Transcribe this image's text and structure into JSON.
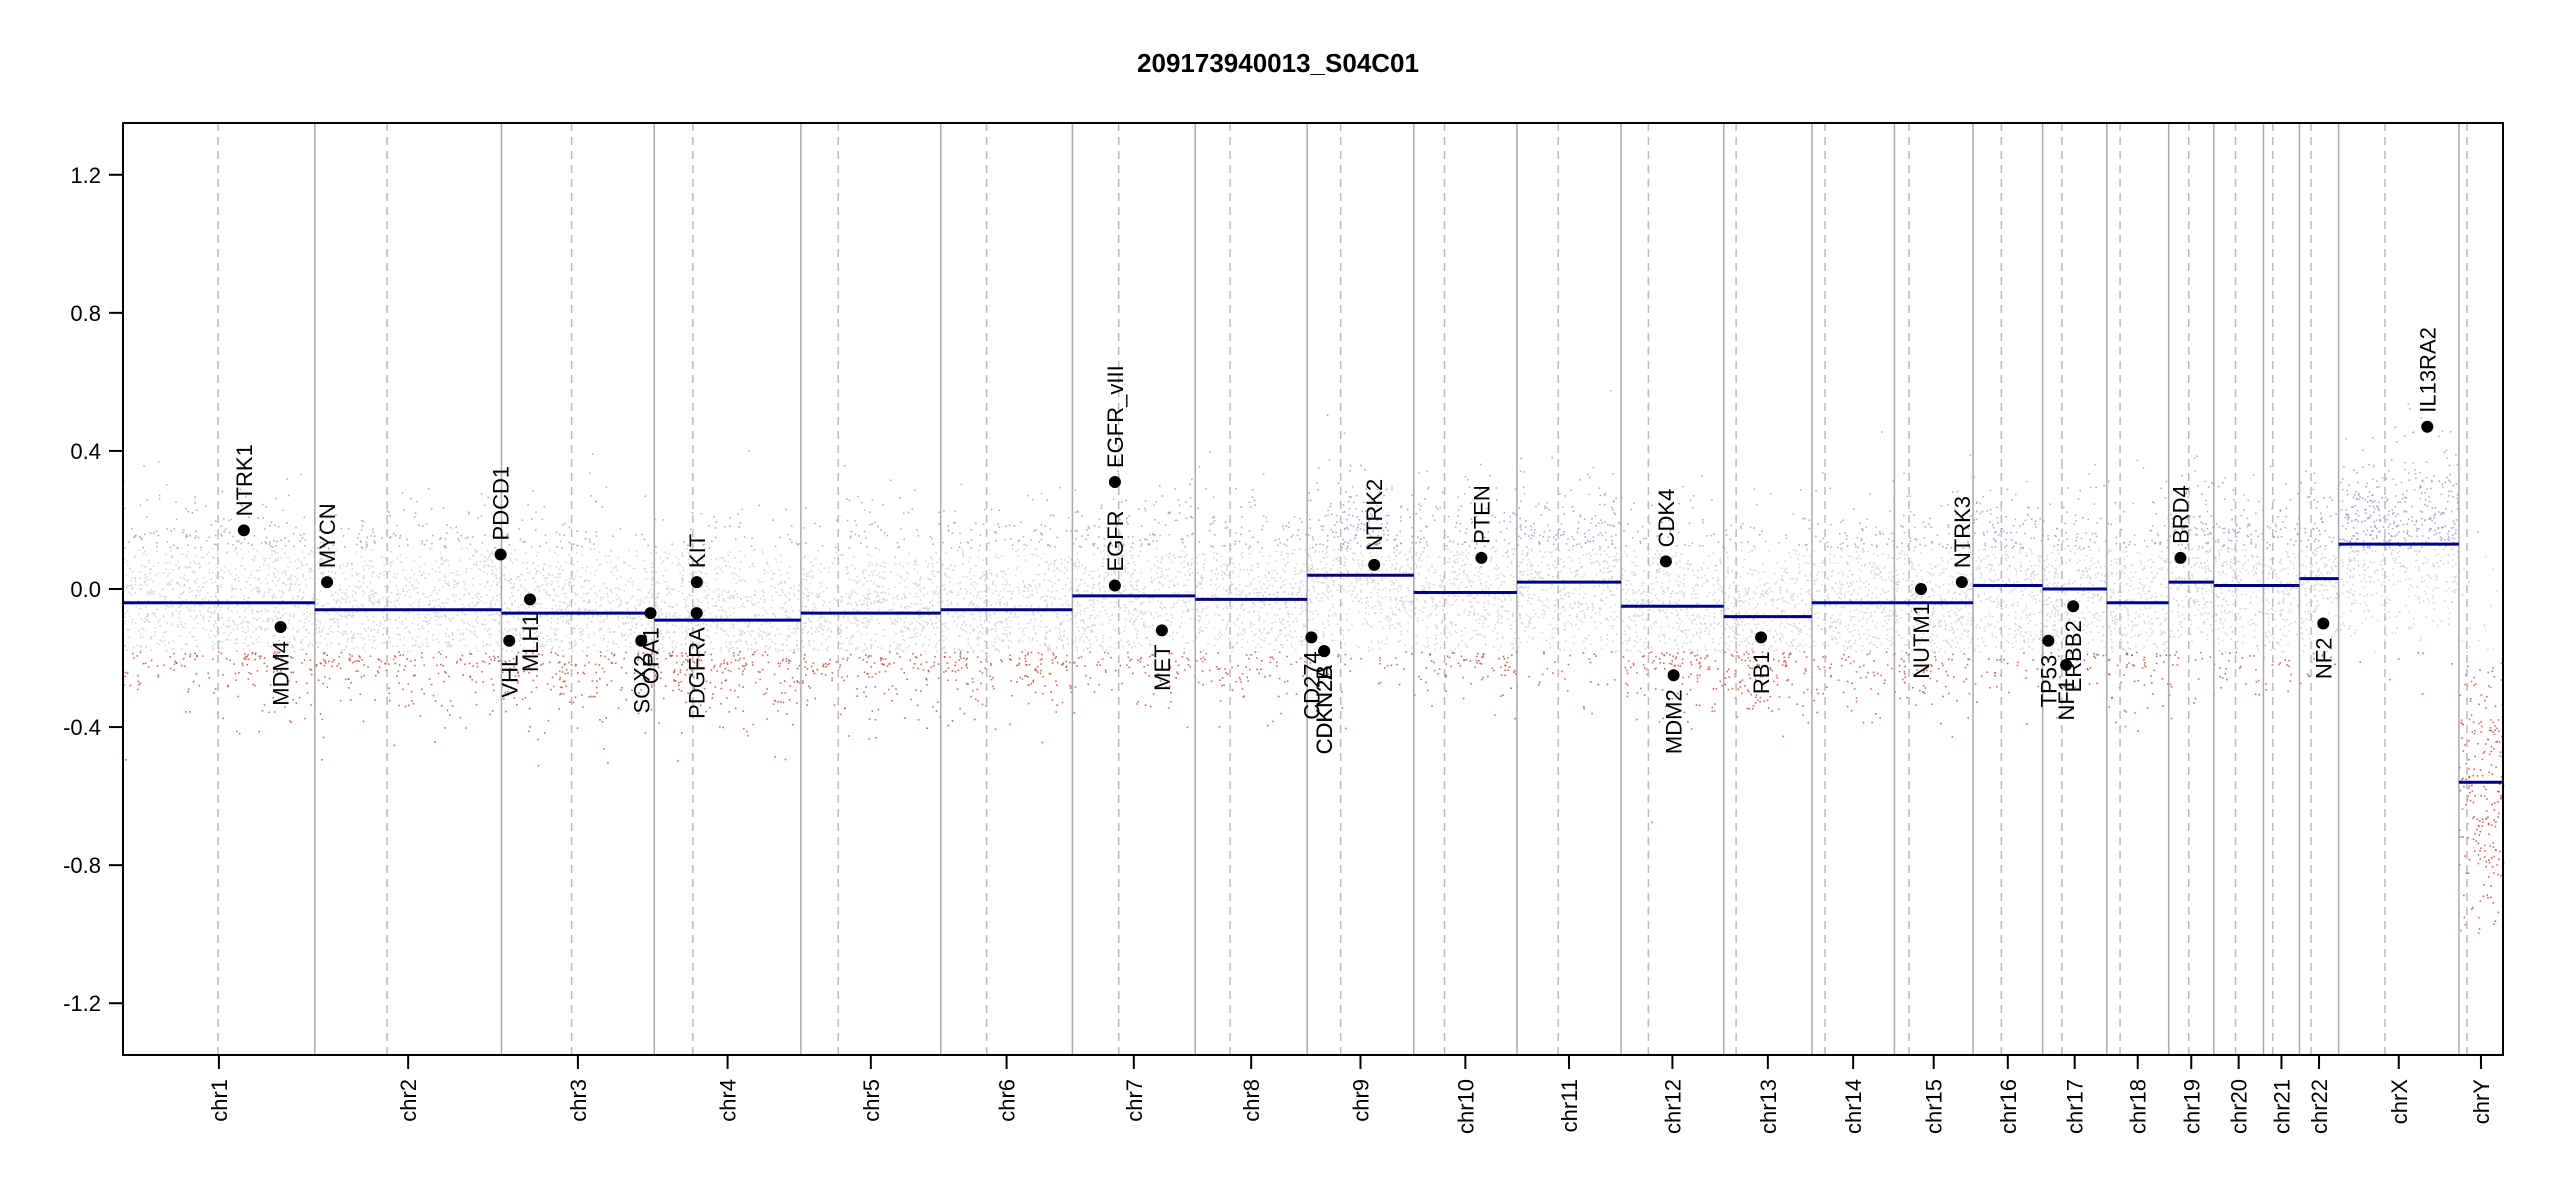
{
  "title": "209173940013_S04C01",
  "chart_data": {
    "type": "scatter",
    "title": "209173940013_S04C01",
    "xlabel": "",
    "ylabel": "",
    "ylim": [
      -1.35,
      1.35
    ],
    "yticks": [
      "-1.2",
      "-0.8",
      "-0.4",
      "0.0",
      "0.4",
      "0.8",
      "1.2"
    ],
    "colors": {
      "gain": "#8f90c8",
      "neutral": "#c9c9c9",
      "loss": "#c0392b",
      "segment": "#00008b",
      "gene": "#000000",
      "boundary": "#aaaaaa",
      "centromere": "#bbbbbb"
    },
    "chromosomes": [
      {
        "name": "chr1",
        "start": 0,
        "end": 248.9,
        "centromere": 123.4,
        "segment": -0.04
      },
      {
        "name": "chr2",
        "start": 248.9,
        "end": 491.1,
        "centromere": 342.7,
        "segment": -0.06
      },
      {
        "name": "chr3",
        "start": 491.1,
        "end": 689.4,
        "centromere": 582.1,
        "segment": -0.07
      },
      {
        "name": "chr4",
        "start": 689.4,
        "end": 879.6,
        "centromere": 739.4,
        "segment": -0.09
      },
      {
        "name": "chr5",
        "start": 879.6,
        "end": 1061.1,
        "centromere": 928.1,
        "segment": -0.07
      },
      {
        "name": "chr6",
        "start": 1061.1,
        "end": 1231.9,
        "centromere": 1120.6,
        "segment": -0.06
      },
      {
        "name": "chr7",
        "start": 1231.9,
        "end": 1391.3,
        "centromere": 1292.0,
        "segment": -0.02
      },
      {
        "name": "chr8",
        "start": 1391.3,
        "end": 1536.5,
        "centromere": 1436.5,
        "segment": -0.03
      },
      {
        "name": "chr9",
        "start": 1536.5,
        "end": 1674.9,
        "centromere": 1580.0,
        "segment": 0.04
      },
      {
        "name": "chr10",
        "start": 1674.9,
        "end": 1808.7,
        "centromere": 1714.8,
        "segment": -0.01
      },
      {
        "name": "chr11",
        "start": 1808.7,
        "end": 1943.8,
        "centromere": 1862.3,
        "segment": 0.02
      },
      {
        "name": "chr12",
        "start": 1943.8,
        "end": 2077.1,
        "centromere": 1979.3,
        "segment": -0.05
      },
      {
        "name": "chr13",
        "start": 2077.1,
        "end": 2191.5,
        "centromere": 2093.1,
        "segment": -0.08
      },
      {
        "name": "chr14",
        "start": 2191.5,
        "end": 2298.5,
        "centromere": 2208.5,
        "segment": -0.04
      },
      {
        "name": "chr15",
        "start": 2298.5,
        "end": 2400.5,
        "centromere": 2317.5,
        "segment": -0.04
      },
      {
        "name": "chr16",
        "start": 2400.5,
        "end": 2490.8,
        "centromere": 2437.3,
        "segment": 0.01
      },
      {
        "name": "chr17",
        "start": 2490.8,
        "end": 2574.1,
        "centromere": 2515.8,
        "segment": 0.0
      },
      {
        "name": "chr18",
        "start": 2574.1,
        "end": 2654.4,
        "centromere": 2591.3,
        "segment": -0.04
      },
      {
        "name": "chr19",
        "start": 2654.4,
        "end": 2713.0,
        "centromere": 2680.5,
        "segment": 0.02
      },
      {
        "name": "chr20",
        "start": 2713.0,
        "end": 2777.4,
        "centromere": 2741.1,
        "segment": 0.01
      },
      {
        "name": "chr21",
        "start": 2777.4,
        "end": 2824.1,
        "centromere": 2789.4,
        "segment": 0.01
      },
      {
        "name": "chr22",
        "start": 2824.1,
        "end": 2874.9,
        "centromere": 2839.1,
        "segment": 0.03
      },
      {
        "name": "chrX",
        "start": 2874.9,
        "end": 3031.0,
        "centromere": 2935.0,
        "segment": 0.13
      },
      {
        "name": "chrY",
        "start": 3031.0,
        "end": 3088.2,
        "centromere": 3041.4,
        "segment": -0.56
      }
    ],
    "genes": [
      {
        "name": "NTRK1",
        "chr": "chr1",
        "pos": 156.8,
        "value": 0.17,
        "label_side": "up"
      },
      {
        "name": "MDM4",
        "chr": "chr1",
        "pos": 204.5,
        "value": -0.11,
        "label_side": "down"
      },
      {
        "name": "MYCN",
        "chr": "chr2",
        "pos": 264.8,
        "value": 0.02,
        "label_side": "up"
      },
      {
        "name": "PDCD1",
        "chr": "chr2",
        "pos": 490.0,
        "value": 0.1,
        "label_side": "up"
      },
      {
        "name": "VHL",
        "chr": "chr3",
        "pos": 501.2,
        "value": -0.15,
        "label_side": "down"
      },
      {
        "name": "MLH1",
        "chr": "chr3",
        "pos": 528.1,
        "value": -0.03,
        "label_side": "down"
      },
      {
        "name": "SOX2",
        "chr": "chr3",
        "pos": 672.5,
        "value": -0.15,
        "label_side": "down"
      },
      {
        "name": "OPA1",
        "chr": "chr3",
        "pos": 684.5,
        "value": -0.07,
        "label_side": "down"
      },
      {
        "name": "KIT",
        "chr": "chr4",
        "pos": 744.6,
        "value": 0.02,
        "label_side": "up"
      },
      {
        "name": "PDGFRA",
        "chr": "chr4",
        "pos": 744.4,
        "value": -0.07,
        "label_side": "down"
      },
      {
        "name": "EGFR",
        "chr": "chr7",
        "pos": 1287.0,
        "value": 0.01,
        "label_side": "up"
      },
      {
        "name": "EGFR_vIII",
        "chr": "chr7",
        "pos": 1287.1,
        "value": 0.31,
        "label_side": "up"
      },
      {
        "name": "MET",
        "chr": "chr7",
        "pos": 1348.0,
        "value": -0.12,
        "label_side": "down"
      },
      {
        "name": "CD274",
        "chr": "chr9",
        "pos": 1542.0,
        "value": -0.14,
        "label_side": "down"
      },
      {
        "name": "CDKN2A",
        "chr": "chr9",
        "pos": 1558.5,
        "value": -0.18,
        "label_side": "down"
      },
      {
        "name": "CDKN2B",
        "chr": "chr9",
        "pos": 1558.6,
        "value": -0.18,
        "label_side": "down"
      },
      {
        "name": "NTRK2",
        "chr": "chr9",
        "pos": 1623.5,
        "value": 0.07,
        "label_side": "up"
      },
      {
        "name": "PTEN",
        "chr": "chr10",
        "pos": 1762.6,
        "value": 0.09,
        "label_side": "up"
      },
      {
        "name": "CDK4",
        "chr": "chr12",
        "pos": 2002.0,
        "value": 0.08,
        "label_side": "up"
      },
      {
        "name": "MDM2",
        "chr": "chr12",
        "pos": 2012.0,
        "value": -0.25,
        "label_side": "down"
      },
      {
        "name": "RB1",
        "chr": "chr13",
        "pos": 2125.5,
        "value": -0.14,
        "label_side": "down"
      },
      {
        "name": "NUTM1",
        "chr": "chr15",
        "pos": 2333.0,
        "value": 0.0,
        "label_side": "down"
      },
      {
        "name": "NTRK3",
        "chr": "chr15",
        "pos": 2386.0,
        "value": 0.02,
        "label_side": "up"
      },
      {
        "name": "TP53",
        "chr": "chr17",
        "pos": 2498.3,
        "value": -0.15,
        "label_side": "down"
      },
      {
        "name": "NF1",
        "chr": "chr17",
        "pos": 2521.3,
        "value": -0.22,
        "label_side": "down"
      },
      {
        "name": "ERBB2",
        "chr": "chr17",
        "pos": 2530.5,
        "value": -0.05,
        "label_side": "down"
      },
      {
        "name": "BRD4",
        "chr": "chr19",
        "pos": 2669.7,
        "value": 0.09,
        "label_side": "up"
      },
      {
        "name": "NF2",
        "chr": "chr22",
        "pos": 2855.0,
        "value": -0.1,
        "label_side": "down"
      },
      {
        "name": "IL13RA2",
        "chr": "chrX",
        "pos": 2990.0,
        "value": 0.47,
        "label_side": "up"
      }
    ]
  }
}
